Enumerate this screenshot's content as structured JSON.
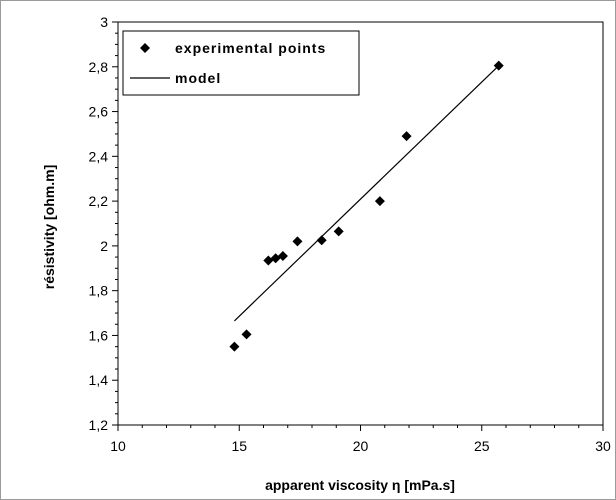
{
  "chart_data": {
    "type": "scatter",
    "xlabel": "apparent viscosity η  [mPa.s]",
    "ylabel": "résistivity    [ohm.m]",
    "xlim": [
      10,
      30
    ],
    "ylim": [
      1.2,
      3
    ],
    "x_ticks": [
      "10",
      "15",
      "20",
      "25",
      "30"
    ],
    "y_ticks": [
      "1,2",
      "1,4",
      "1,6",
      "1,8",
      "2",
      "2,2",
      "2,4",
      "2,6",
      "2,8",
      "3"
    ],
    "grid": false,
    "legend_position": "top-left",
    "series": [
      {
        "name": "experimental points",
        "marker": "diamond",
        "color": "#000000",
        "points": [
          {
            "x": 14.8,
            "y": 1.55
          },
          {
            "x": 15.3,
            "y": 1.605
          },
          {
            "x": 16.2,
            "y": 1.935
          },
          {
            "x": 16.5,
            "y": 1.945
          },
          {
            "x": 16.8,
            "y": 1.955
          },
          {
            "x": 17.4,
            "y": 2.02
          },
          {
            "x": 18.4,
            "y": 2.025
          },
          {
            "x": 19.1,
            "y": 2.065
          },
          {
            "x": 20.8,
            "y": 2.2
          },
          {
            "x": 21.9,
            "y": 2.49
          },
          {
            "x": 25.7,
            "y": 2.805
          }
        ]
      },
      {
        "name": "model",
        "style": "line",
        "color": "#000000",
        "points": [
          {
            "x": 14.8,
            "y": 1.665
          },
          {
            "x": 25.7,
            "y": 2.805
          }
        ]
      }
    ]
  }
}
